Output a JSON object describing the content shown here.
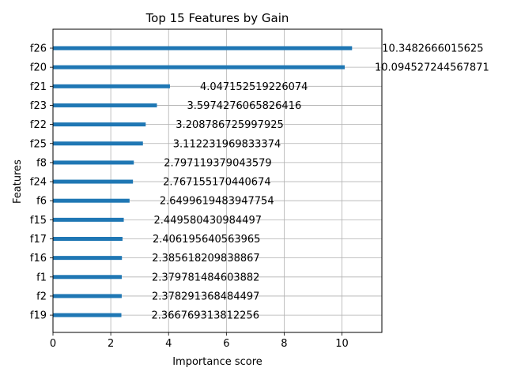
{
  "chart_data": {
    "type": "bar",
    "orientation": "horizontal",
    "title": "Top 15 Features by Gain",
    "xlabel": "Importance score",
    "ylabel": "Features",
    "xlim": [
      0,
      11.38
    ],
    "xticks": [
      0,
      2,
      4,
      6,
      8,
      10
    ],
    "grid": true,
    "bar_color": "#1f77b4",
    "categories": [
      "f26",
      "f20",
      "f21",
      "f23",
      "f22",
      "f25",
      "f8",
      "f24",
      "f6",
      "f15",
      "f17",
      "f16",
      "f1",
      "f2",
      "f19"
    ],
    "values": [
      10.3482666015625,
      10.094527244567871,
      4.047152519226074,
      3.5974276065826416,
      3.208786725997925,
      3.112231969833374,
      2.797119379043579,
      2.767155170440674,
      2.6499619483947754,
      2.449580430984497,
      2.406195640563965,
      2.385618209838867,
      2.379781484603882,
      2.378291368484497,
      2.366769313812256
    ],
    "value_labels": [
      "10.3482666015625",
      "10.094527244567871",
      "4.047152519226074",
      "3.5974276065826416",
      "3.208786725997925",
      "3.112231969833374",
      "2.797119379043579",
      "2.767155170440674",
      "2.6499619483947754",
      "2.449580430984497",
      "2.406195640563965",
      "2.385618209838867",
      "2.379781484603882",
      "2.378291368484497",
      "2.366769313812256"
    ]
  }
}
